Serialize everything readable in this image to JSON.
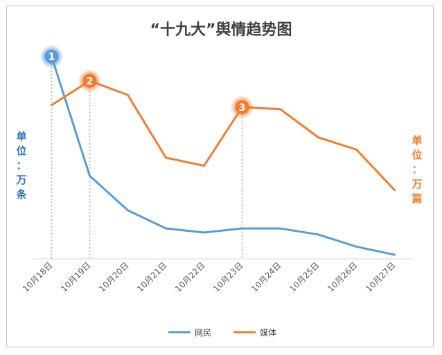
{
  "chart_data": {
    "type": "line",
    "title": "“十九大”舆情趋势图",
    "categories": [
      "10月18日",
      "10月19日",
      "10月20日",
      "10月21日",
      "10月22日",
      "10月23日",
      "10月24日",
      "10月25日",
      "10月26日",
      "10月27日"
    ],
    "series": [
      {
        "name": "网民",
        "axis": "left",
        "color": "#5b9bd5",
        "values": [
          100,
          41,
          24,
          15,
          13,
          15,
          15,
          12,
          6,
          2
        ]
      },
      {
        "name": "媒体",
        "axis": "right",
        "color": "#ed7d31",
        "values": [
          76,
          88,
          81,
          50,
          46,
          75,
          74,
          60,
          54,
          34
        ]
      }
    ],
    "left_unit": [
      "单",
      "位",
      "：",
      "万",
      "条"
    ],
    "right_unit": [
      "单",
      "位",
      "：",
      "万",
      "篇"
    ],
    "markers": [
      {
        "label": "1",
        "series": 0,
        "index": 0,
        "color": "#5b9bd5"
      },
      {
        "label": "2",
        "series": 1,
        "index": 1,
        "color": "#ed7d31"
      },
      {
        "label": "3",
        "series": 1,
        "index": 5,
        "color": "#ed7d31"
      }
    ],
    "ylim_left": [
      0,
      104
    ],
    "ylim_right": [
      0,
      104
    ],
    "grid": false,
    "legend_position": "bottom"
  }
}
